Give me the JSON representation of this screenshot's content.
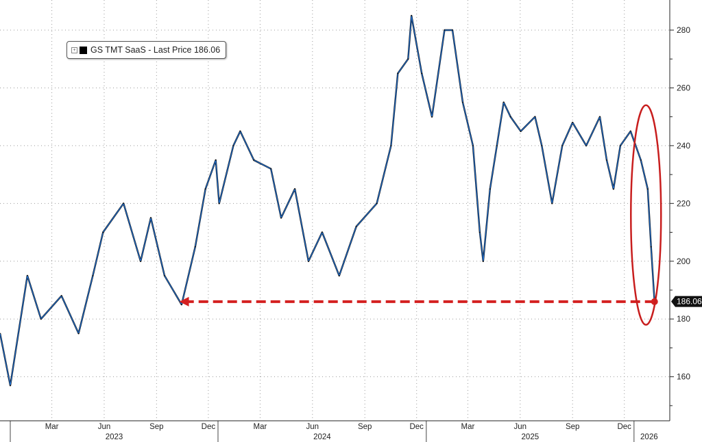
{
  "chart_data": {
    "type": "line",
    "title": "",
    "xlabel": "",
    "ylabel": "",
    "ylim": [
      143,
      290
    ],
    "y_ticks": [
      160,
      180,
      200,
      220,
      240,
      260,
      280
    ],
    "grid": true,
    "legend": {
      "position": "top-left",
      "entries": [
        "GS TMT SaaS - Last Price 186.06"
      ]
    },
    "series": [
      {
        "name": "GS TMT SaaS",
        "color": "#1f6fd1",
        "points": [
          [
            "2022-12-14",
            175
          ],
          [
            "2023-01-01",
            157
          ],
          [
            "2023-01-31",
            195
          ],
          [
            "2023-02-24",
            180
          ],
          [
            "2023-04-01",
            188
          ],
          [
            "2023-05-01",
            175
          ],
          [
            "2023-05-26",
            195
          ],
          [
            "2023-06-13",
            210
          ],
          [
            "2023-07-19",
            220
          ],
          [
            "2023-08-18",
            200
          ],
          [
            "2023-09-05",
            215
          ],
          [
            "2023-09-29",
            195
          ],
          [
            "2023-10-29",
            185
          ],
          [
            "2023-11-22",
            205
          ],
          [
            "2023-12-10",
            225
          ],
          [
            "2023-12-28",
            235
          ],
          [
            "2024-01-03",
            220
          ],
          [
            "2024-01-28",
            240
          ],
          [
            "2024-02-09",
            245
          ],
          [
            "2024-03-04",
            235
          ],
          [
            "2024-04-03",
            232
          ],
          [
            "2024-04-21",
            215
          ],
          [
            "2024-05-15",
            225
          ],
          [
            "2024-06-08",
            200
          ],
          [
            "2024-07-02",
            210
          ],
          [
            "2024-08-01",
            195
          ],
          [
            "2024-08-31",
            212
          ],
          [
            "2024-10-06",
            220
          ],
          [
            "2024-10-31",
            240
          ],
          [
            "2024-11-12",
            265
          ],
          [
            "2024-11-30",
            270
          ],
          [
            "2024-12-06",
            285
          ],
          [
            "2024-12-24",
            265
          ],
          [
            "2025-01-11",
            250
          ],
          [
            "2025-02-02",
            280
          ],
          [
            "2025-02-16",
            280
          ],
          [
            "2025-03-06",
            255
          ],
          [
            "2025-03-24",
            240
          ],
          [
            "2025-04-05",
            210
          ],
          [
            "2025-04-11",
            200
          ],
          [
            "2025-04-23",
            225
          ],
          [
            "2025-05-05",
            240
          ],
          [
            "2025-05-17",
            255
          ],
          [
            "2025-05-29",
            250
          ],
          [
            "2025-06-16",
            245
          ],
          [
            "2025-07-11",
            250
          ],
          [
            "2025-07-23",
            240
          ],
          [
            "2025-08-10",
            220
          ],
          [
            "2025-08-28",
            240
          ],
          [
            "2025-09-15",
            248
          ],
          [
            "2025-10-09",
            240
          ],
          [
            "2025-11-02",
            250
          ],
          [
            "2025-11-14",
            235
          ],
          [
            "2025-11-26",
            225
          ],
          [
            "2025-12-08",
            240
          ],
          [
            "2025-12-26",
            245
          ],
          [
            "2026-01-13",
            235
          ],
          [
            "2026-01-25",
            225
          ],
          [
            "2026-01-31",
            205
          ],
          [
            "2026-02-06",
            186.06
          ]
        ]
      }
    ],
    "x_month_ticks": [
      {
        "label": "Mar",
        "date": "2023-03-15"
      },
      {
        "label": "Jun",
        "date": "2023-06-15"
      },
      {
        "label": "Sep",
        "date": "2023-09-15"
      },
      {
        "label": "Dec",
        "date": "2023-12-15"
      },
      {
        "label": "Mar",
        "date": "2024-03-15"
      },
      {
        "label": "Jun",
        "date": "2024-06-15"
      },
      {
        "label": "Sep",
        "date": "2024-09-15"
      },
      {
        "label": "Dec",
        "date": "2024-12-15"
      },
      {
        "label": "Mar",
        "date": "2025-03-15"
      },
      {
        "label": "Jun",
        "date": "2025-06-15"
      },
      {
        "label": "Sep",
        "date": "2025-09-15"
      },
      {
        "label": "Dec",
        "date": "2025-12-15"
      }
    ],
    "x_year_ticks": [
      {
        "label": "2023",
        "start": "2023-01-01"
      },
      {
        "label": "2024",
        "start": "2024-01-01"
      },
      {
        "label": "2025",
        "start": "2025-01-01"
      },
      {
        "label": "2026",
        "start": "2026-01-01"
      }
    ],
    "last_price_label": "186.06",
    "annotations": {
      "arrow": {
        "from_date": "2026-02-06",
        "to_date": "2023-10-25",
        "value": 186,
        "color": "#d42020"
      },
      "ellipse": {
        "center_date": "2026-01-22",
        "value_range": [
          178,
          254
        ],
        "color": "#c81e1e"
      }
    }
  },
  "legend_text": "GS TMT SaaS - Last Price 186.06"
}
